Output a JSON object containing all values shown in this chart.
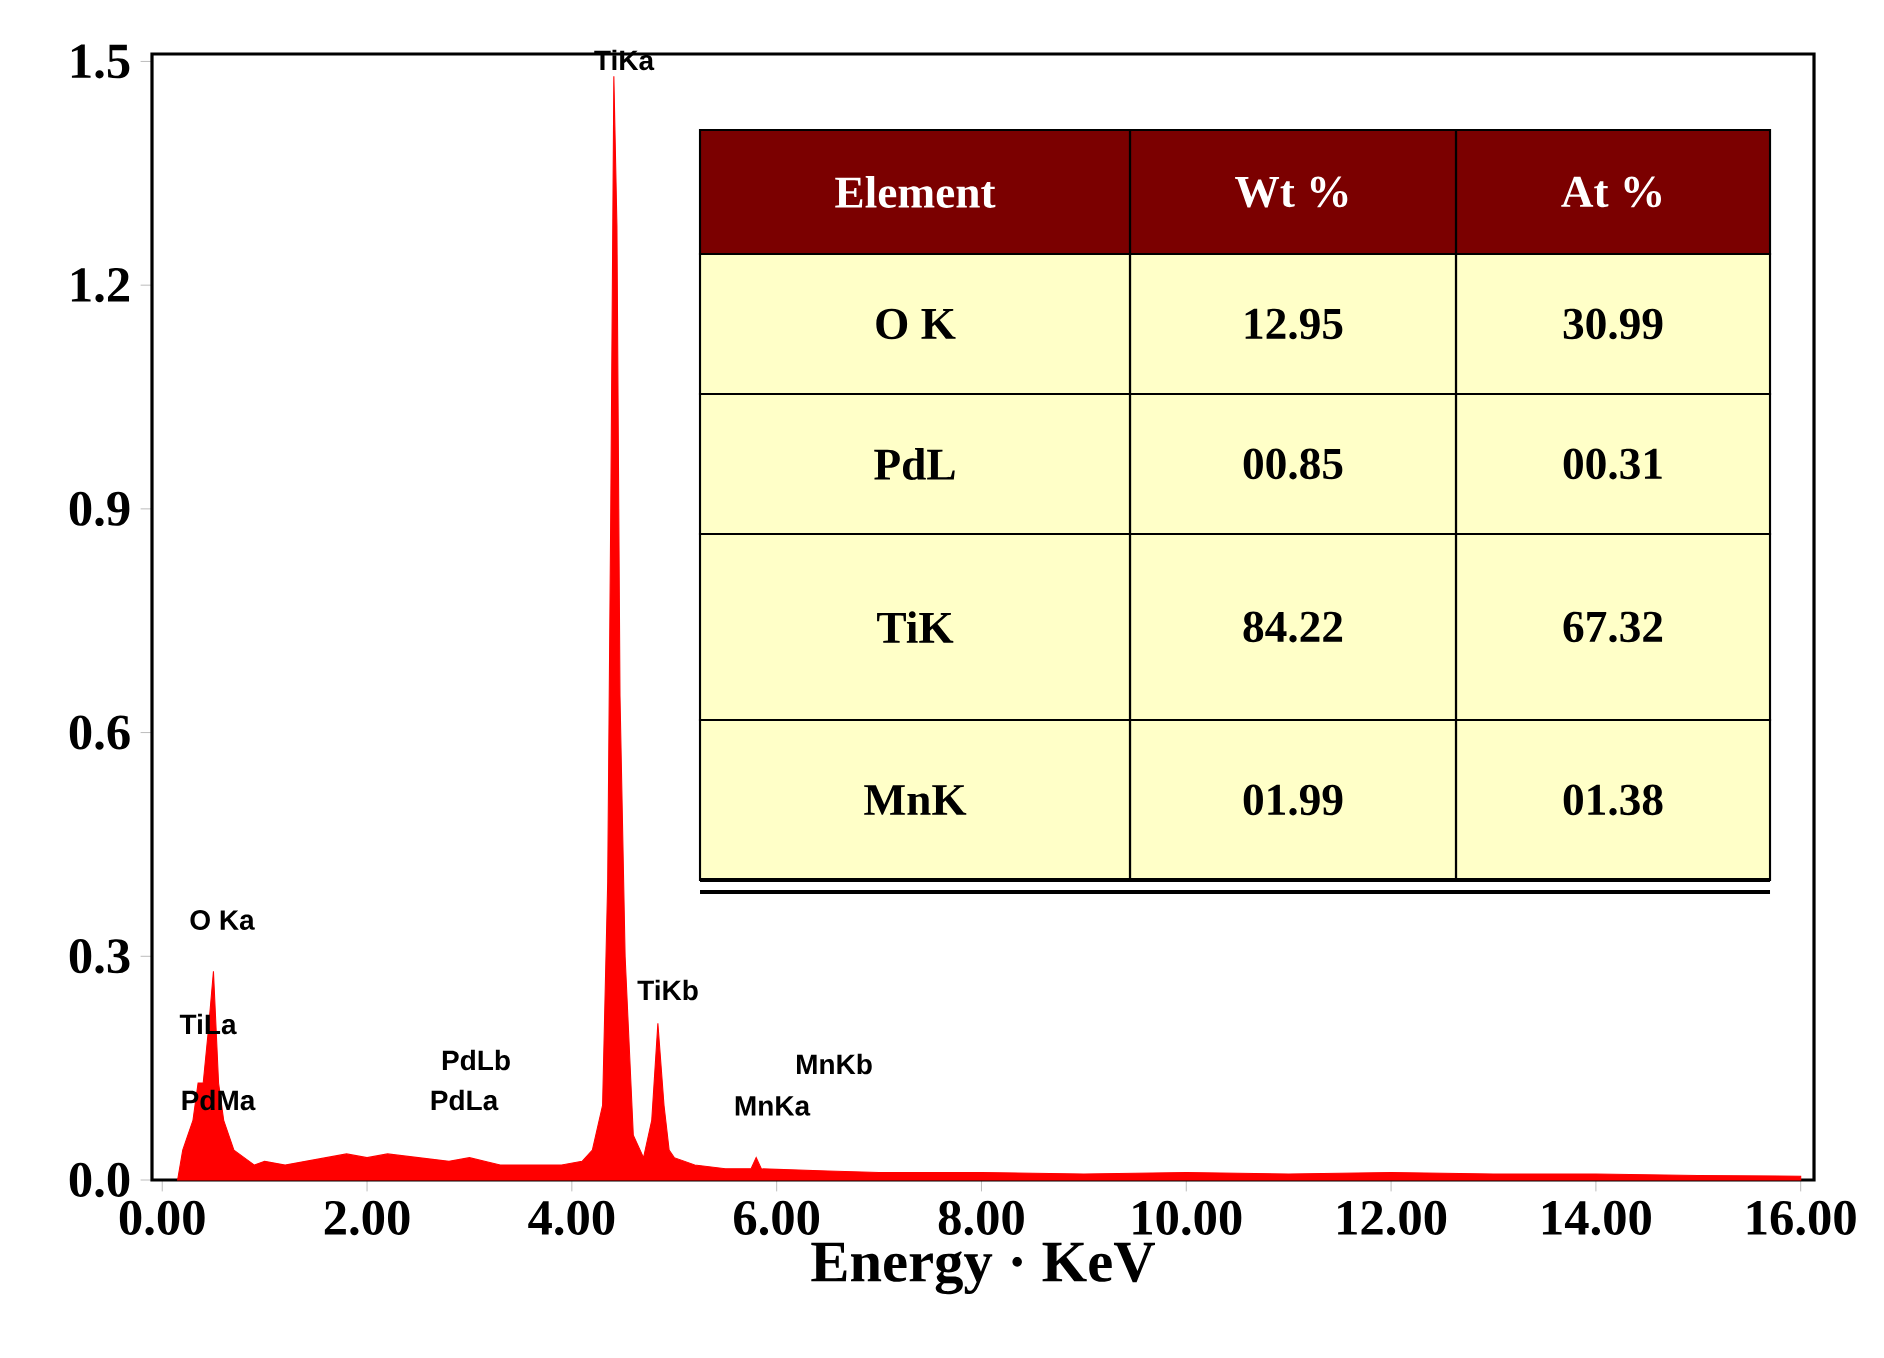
{
  "chart_data": {
    "type": "area",
    "xlabel": "Energy · KeV",
    "x": [
      0.15,
      0.2,
      0.25,
      0.3,
      0.35,
      0.4,
      0.45,
      0.5,
      0.55,
      0.6,
      0.7,
      0.8,
      0.9,
      1.0,
      1.2,
      1.4,
      1.6,
      1.8,
      2.0,
      2.2,
      2.5,
      2.8,
      3.0,
      3.3,
      3.6,
      3.9,
      4.1,
      4.2,
      4.3,
      4.35,
      4.38,
      4.41,
      4.44,
      4.47,
      4.52,
      4.6,
      4.7,
      4.78,
      4.84,
      4.9,
      4.95,
      5.0,
      5.2,
      5.5,
      5.75,
      5.8,
      5.85,
      6.5,
      7.0,
      8.0,
      9.0,
      10.0,
      11.0,
      12.0,
      13.0,
      14.0,
      15.0,
      16.0
    ],
    "series": [
      {
        "color": "#ff0000",
        "values": [
          0,
          0.04,
          0.06,
          0.08,
          0.13,
          0.13,
          0.2,
          0.28,
          0.13,
          0.08,
          0.04,
          0.03,
          0.02,
          0.025,
          0.02,
          0.025,
          0.03,
          0.035,
          0.03,
          0.035,
          0.03,
          0.025,
          0.03,
          0.02,
          0.02,
          0.02,
          0.025,
          0.04,
          0.1,
          0.4,
          0.9,
          1.48,
          1.28,
          0.65,
          0.3,
          0.06,
          0.03,
          0.08,
          0.21,
          0.1,
          0.04,
          0.03,
          0.02,
          0.015,
          0.015,
          0.03,
          0.015,
          0.012,
          0.01,
          0.01,
          0.008,
          0.01,
          0.008,
          0.01,
          0.008,
          0.008,
          0.006,
          0.005
        ]
      }
    ],
    "xlim": [
      -0.1,
      16.13
    ],
    "ylim": [
      0,
      1.51
    ],
    "xticks": [
      {
        "value": 0,
        "label": "0.00"
      },
      {
        "value": 2,
        "label": "2.00"
      },
      {
        "value": 4,
        "label": "4.00"
      },
      {
        "value": 6,
        "label": "6.00"
      },
      {
        "value": 8,
        "label": "8.00"
      },
      {
        "value": 10,
        "label": "10.00"
      },
      {
        "value": 12,
        "label": "12.00"
      },
      {
        "value": 14,
        "label": "14.00"
      },
      {
        "value": 16,
        "label": "16.00"
      }
    ],
    "yticks": [
      {
        "value": 0,
        "label": "0.0"
      },
      0.3,
      0.6,
      0.9,
      1.2,
      1.5
    ],
    "annotations": [
      "O Ka",
      "TiLa",
      "PdMa",
      "PdLb",
      "PdLa",
      "TiKa",
      "TiKb",
      "MnKb",
      "MnKa",
      "Element",
      "Wt %",
      "At %",
      "O K",
      "12.95",
      "30.99",
      "PdL",
      "00.85",
      "00.31",
      "TiK",
      "84.22",
      "67.32",
      "MnK",
      "01.99",
      "01.38"
    ]
  }
}
